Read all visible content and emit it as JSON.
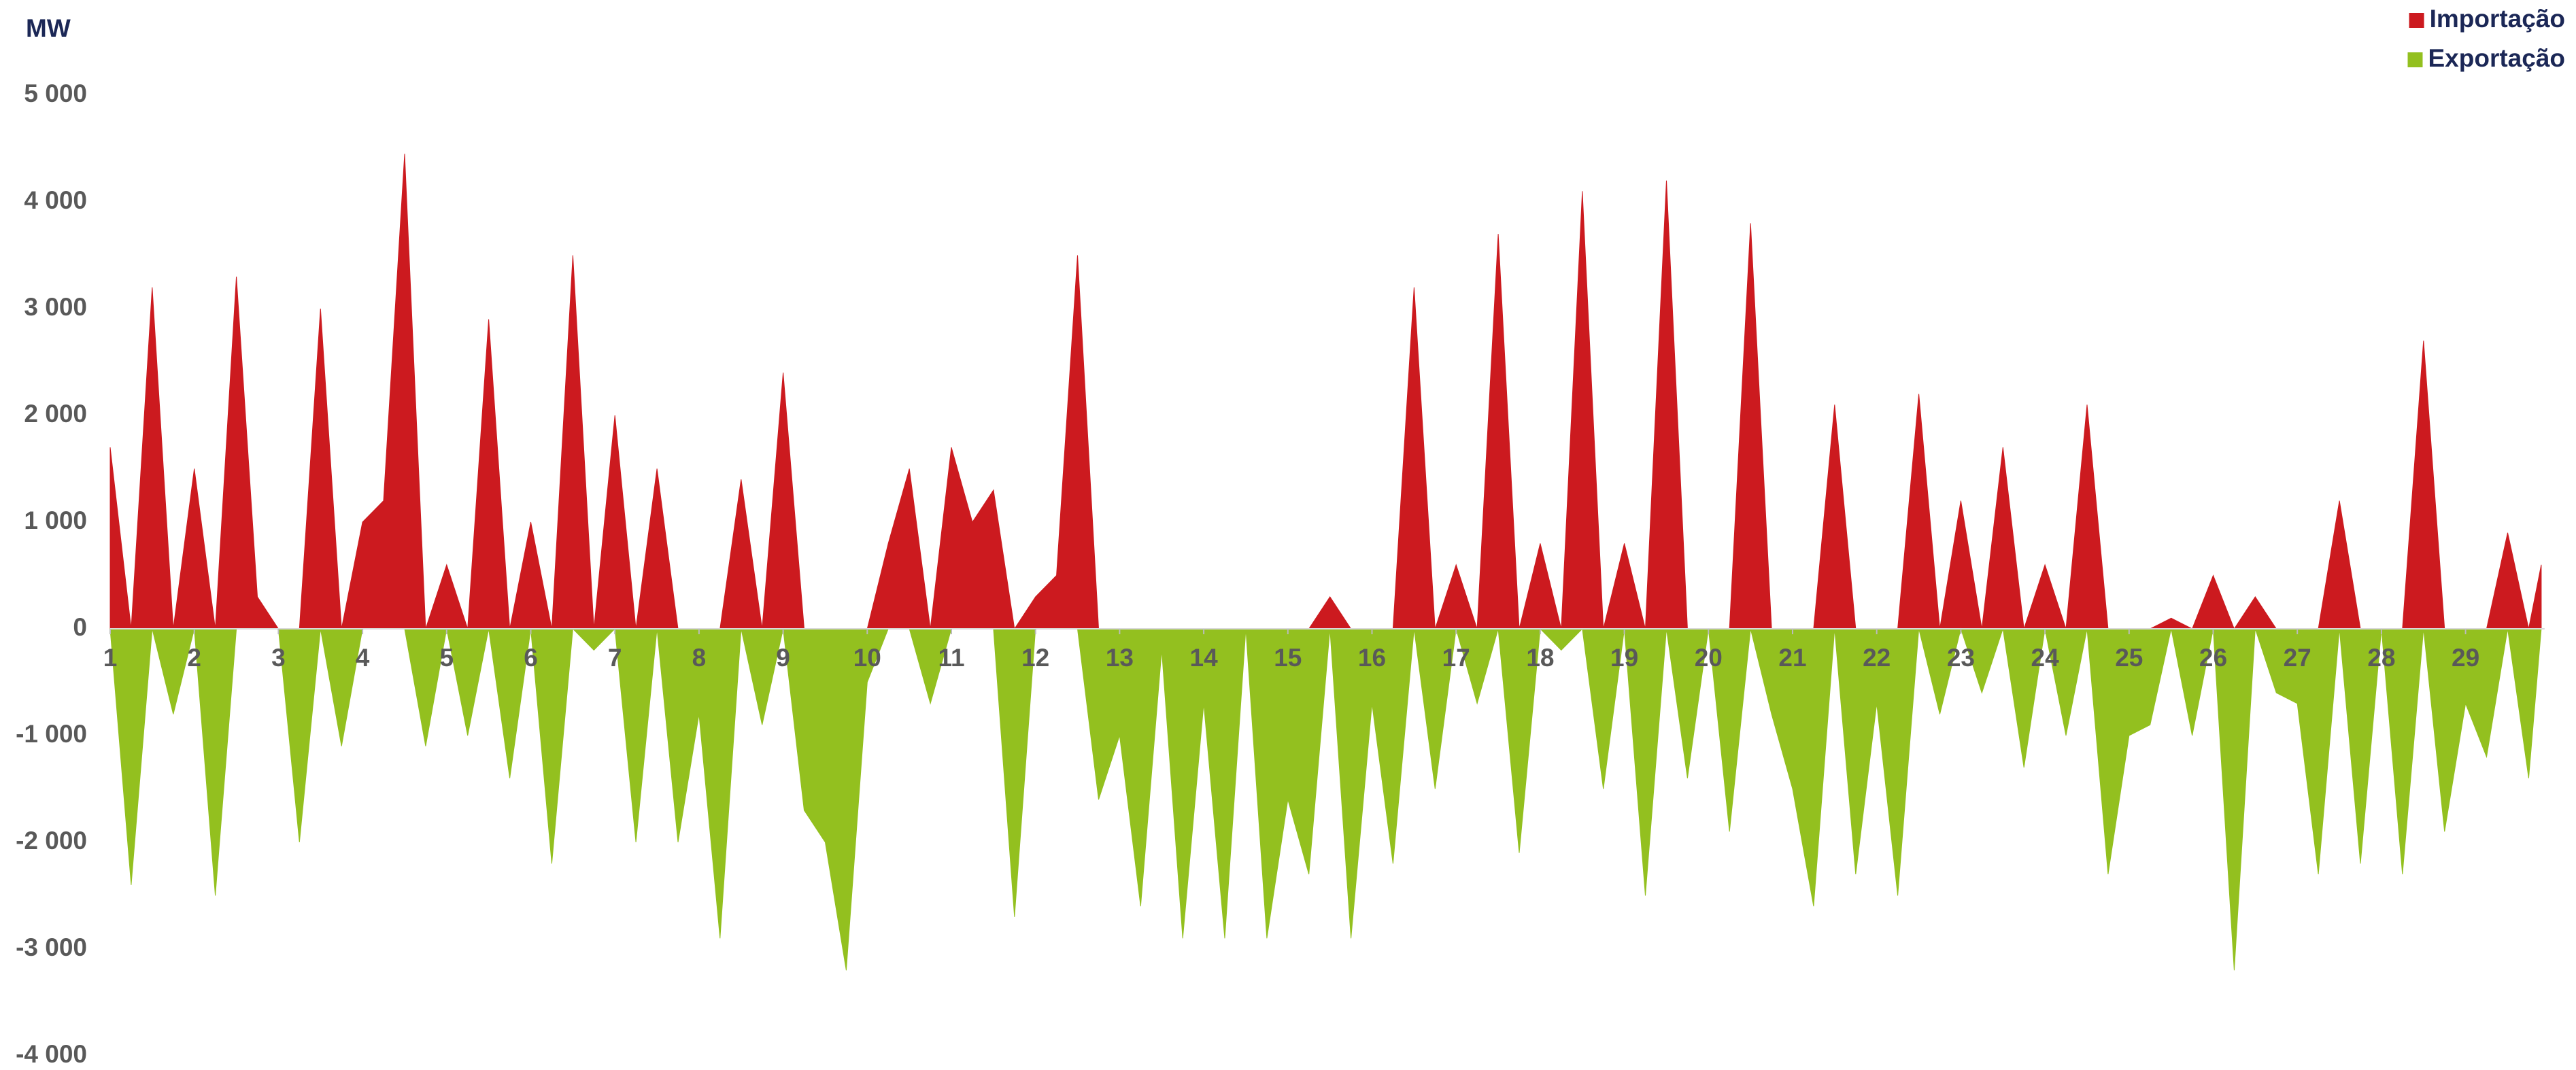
{
  "chart_data": {
    "type": "area",
    "y_label": "MW",
    "legend": "top-right",
    "x": [
      1,
      1.25,
      1.5,
      1.75,
      2,
      2.25,
      2.5,
      2.75,
      3,
      3.25,
      3.5,
      3.75,
      4,
      4.25,
      4.5,
      4.75,
      5,
      5.25,
      5.5,
      5.75,
      6,
      6.25,
      6.5,
      6.75,
      7,
      7.25,
      7.5,
      7.75,
      8,
      8.25,
      8.5,
      8.75,
      9,
      9.25,
      9.5,
      9.75,
      10,
      10.25,
      10.5,
      10.75,
      11,
      11.25,
      11.5,
      11.75,
      12,
      12.25,
      12.5,
      12.75,
      13,
      13.25,
      13.5,
      13.75,
      14,
      14.25,
      14.5,
      14.75,
      15,
      15.25,
      15.5,
      15.75,
      16,
      16.25,
      16.5,
      16.75,
      17,
      17.25,
      17.5,
      17.75,
      18,
      18.25,
      18.5,
      18.75,
      19,
      19.25,
      19.5,
      19.75,
      20,
      20.25,
      20.5,
      20.75,
      21,
      21.25,
      21.5,
      21.75,
      22,
      22.25,
      22.5,
      22.75,
      23,
      23.25,
      23.5,
      23.75,
      24,
      24.25,
      24.5,
      24.75,
      25,
      25.25,
      25.5,
      25.75,
      26,
      26.25,
      26.5,
      26.75,
      27,
      27.25,
      27.5,
      27.75,
      28,
      28.25,
      28.5,
      28.75,
      29,
      29.25,
      29.5,
      29.75,
      29.9
    ],
    "series": [
      {
        "name": "Importação",
        "color": "#cc1a1f",
        "values": [
          1700,
          0,
          3200,
          0,
          1500,
          0,
          3300,
          300,
          0,
          0,
          3000,
          0,
          1000,
          1200,
          4450,
          0,
          600,
          0,
          2900,
          0,
          1000,
          0,
          3500,
          0,
          2000,
          0,
          1500,
          0,
          0,
          0,
          1400,
          0,
          2400,
          0,
          0,
          0,
          0,
          800,
          1500,
          0,
          1700,
          1000,
          1300,
          0,
          300,
          500,
          3500,
          0,
          0,
          0,
          0,
          0,
          0,
          0,
          0,
          0,
          0,
          0,
          300,
          0,
          0,
          0,
          3200,
          0,
          600,
          0,
          3700,
          0,
          800,
          0,
          4100,
          0,
          800,
          0,
          4200,
          0,
          0,
          0,
          3800,
          0,
          0,
          0,
          2100,
          0,
          0,
          0,
          2200,
          0,
          1200,
          0,
          1700,
          0,
          600,
          0,
          2100,
          0,
          0,
          0,
          100,
          0,
          500,
          0,
          300,
          0,
          0,
          0,
          1200,
          0,
          0,
          0,
          2700,
          0,
          0,
          0,
          900,
          0,
          600
        ]
      },
      {
        "name": "Exportação",
        "color": "#93c01f",
        "values": [
          0,
          -2400,
          0,
          -800,
          0,
          -2500,
          0,
          0,
          0,
          -2000,
          0,
          -1100,
          0,
          0,
          0,
          -1100,
          0,
          -1000,
          0,
          -1400,
          0,
          -2200,
          0,
          -200,
          0,
          -2000,
          0,
          -2000,
          -800,
          -2900,
          0,
          -900,
          0,
          -1700,
          -2000,
          -3200,
          -500,
          0,
          0,
          -700,
          0,
          0,
          0,
          -2700,
          0,
          0,
          0,
          -1600,
          -1000,
          -2600,
          -200,
          -2900,
          -700,
          -2900,
          0,
          -2900,
          -1600,
          -2300,
          0,
          -2900,
          -700,
          -2200,
          0,
          -1500,
          0,
          -700,
          0,
          -2100,
          0,
          -200,
          0,
          -1500,
          0,
          -2500,
          0,
          -1400,
          0,
          -1900,
          0,
          -800,
          -1500,
          -2600,
          0,
          -2300,
          -700,
          -2500,
          0,
          -800,
          0,
          -600,
          0,
          -1300,
          0,
          -1000,
          0,
          -2300,
          -1000,
          -900,
          0,
          -1000,
          0,
          -3200,
          0,
          -600,
          -700,
          -2300,
          0,
          -2200,
          0,
          -2300,
          0,
          -1900,
          -700,
          -1200,
          0,
          -1400,
          0
        ]
      }
    ],
    "xlim": [
      1,
      29.94
    ],
    "xticks": [
      1,
      2,
      3,
      4,
      5,
      6,
      7,
      8,
      9,
      10,
      11,
      12,
      13,
      14,
      15,
      16,
      17,
      18,
      19,
      20,
      21,
      22,
      23,
      24,
      25,
      26,
      27,
      28,
      29
    ],
    "ylim": [
      -4000,
      5000
    ],
    "yticks": [
      {
        "value": 5000,
        "label": "5 000"
      },
      {
        "value": 4000,
        "label": "4 000"
      },
      {
        "value": 3000,
        "label": "3 000"
      },
      {
        "value": 2000,
        "label": "2 000"
      },
      {
        "value": 1000,
        "label": "1 000"
      },
      0,
      {
        "value": -1000,
        "label": "-1 000"
      },
      {
        "value": -2000,
        "label": "-2 000"
      },
      {
        "value": -3000,
        "label": "-3 000"
      },
      {
        "value": -4000,
        "label": "-4 000"
      }
    ]
  }
}
